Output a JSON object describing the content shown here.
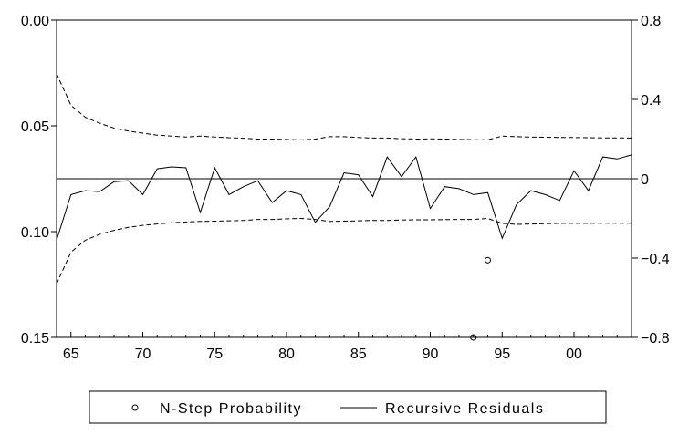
{
  "chart_data": {
    "type": "line",
    "title": "",
    "xlabel": "",
    "x_ticks": [
      "65",
      "70",
      "75",
      "80",
      "85",
      "90",
      "95",
      "00"
    ],
    "x_years": [
      1965,
      1970,
      1975,
      1980,
      1985,
      1990,
      1995,
      2000
    ],
    "x_range": [
      1964,
      2004
    ],
    "left_axis": {
      "label": "",
      "range": [
        0.0,
        0.15
      ],
      "inverted": true,
      "ticks": [
        0.0,
        0.05,
        0.1,
        0.15
      ],
      "tick_labels": [
        "0.00",
        "0.05",
        "0.10",
        "0.15"
      ]
    },
    "right_axis": {
      "label": "",
      "range": [
        -0.8,
        0.8
      ],
      "ticks": [
        0.8,
        0.4,
        0,
        -0.4,
        -0.8
      ],
      "tick_labels": [
        "0.8",
        "0.4",
        "0",
        "−0.4",
        "−0.8"
      ]
    },
    "series": [
      {
        "name": "N-Step Probability",
        "axis": "left",
        "style": "markers",
        "x": [
          1993,
          1994
        ],
        "y": [
          0.15,
          0.1135
        ]
      },
      {
        "name": "Recursive Residuals",
        "axis": "right",
        "style": "solid",
        "x": [
          1964,
          1965,
          1966,
          1967,
          1968,
          1969,
          1970,
          1971,
          1972,
          1973,
          1974,
          1975,
          1976,
          1977,
          1978,
          1979,
          1980,
          1981,
          1982,
          1983,
          1984,
          1985,
          1986,
          1987,
          1988,
          1989,
          1990,
          1991,
          1992,
          1993,
          1994,
          1995,
          1996,
          1997,
          1998,
          1999,
          2000,
          2001,
          2002,
          2003,
          2004
        ],
        "y": [
          -0.31,
          -0.08,
          -0.06,
          -0.065,
          -0.015,
          -0.01,
          -0.08,
          0.05,
          0.06,
          0.055,
          -0.17,
          0.055,
          -0.08,
          -0.04,
          -0.01,
          -0.12,
          -0.06,
          -0.08,
          -0.22,
          -0.14,
          0.03,
          0.02,
          -0.09,
          0.11,
          0.01,
          0.11,
          -0.15,
          -0.04,
          -0.05,
          -0.08,
          -0.07,
          -0.3,
          -0.13,
          -0.06,
          -0.08,
          -0.11,
          0.04,
          -0.06,
          0.11,
          0.1,
          0.12
        ]
      },
      {
        "name": "",
        "axis": "right",
        "style": "dashed",
        "x": [
          1964,
          1965,
          1966,
          1967,
          1968,
          1969,
          1970,
          1971,
          1972,
          1973,
          1974,
          1975,
          1976,
          1977,
          1978,
          1979,
          1980,
          1981,
          1982,
          1983,
          1984,
          1985,
          1986,
          1987,
          1988,
          1989,
          1990,
          1991,
          1992,
          1993,
          1994,
          1995,
          1996,
          1997,
          1998,
          1999,
          2000,
          2001,
          2002,
          2003,
          2004
        ],
        "y": [
          0.53,
          0.37,
          0.31,
          0.28,
          0.255,
          0.24,
          0.23,
          0.22,
          0.215,
          0.21,
          0.215,
          0.21,
          0.207,
          0.204,
          0.2,
          0.2,
          0.198,
          0.196,
          0.2,
          0.212,
          0.212,
          0.208,
          0.205,
          0.205,
          0.202,
          0.2,
          0.201,
          0.2,
          0.198,
          0.197,
          0.196,
          0.215,
          0.212,
          0.21,
          0.209,
          0.208,
          0.208,
          0.207,
          0.206,
          0.206,
          0.205
        ]
      },
      {
        "name": "",
        "axis": "right",
        "style": "dashed",
        "x": [
          1964,
          1965,
          1966,
          1967,
          1968,
          1969,
          1970,
          1971,
          1972,
          1973,
          1974,
          1975,
          1976,
          1977,
          1978,
          1979,
          1980,
          1981,
          1982,
          1983,
          1984,
          1985,
          1986,
          1987,
          1988,
          1989,
          1990,
          1991,
          1992,
          1993,
          1994,
          1995,
          1996,
          1997,
          1998,
          1999,
          2000,
          2001,
          2002,
          2003,
          2004
        ],
        "y": [
          -0.53,
          -0.37,
          -0.31,
          -0.28,
          -0.26,
          -0.245,
          -0.235,
          -0.228,
          -0.222,
          -0.218,
          -0.215,
          -0.214,
          -0.212,
          -0.21,
          -0.205,
          -0.205,
          -0.202,
          -0.2,
          -0.205,
          -0.215,
          -0.214,
          -0.212,
          -0.21,
          -0.21,
          -0.208,
          -0.207,
          -0.207,
          -0.206,
          -0.205,
          -0.205,
          -0.2,
          -0.225,
          -0.23,
          -0.228,
          -0.226,
          -0.225,
          -0.225,
          -0.225,
          -0.224,
          -0.224,
          -0.224
        ]
      }
    ],
    "legend": {
      "position": "bottom",
      "items": [
        {
          "label": "N-Step Probability",
          "symbol": "circle"
        },
        {
          "label": "Recursive Residuals",
          "symbol": "line"
        }
      ]
    }
  }
}
